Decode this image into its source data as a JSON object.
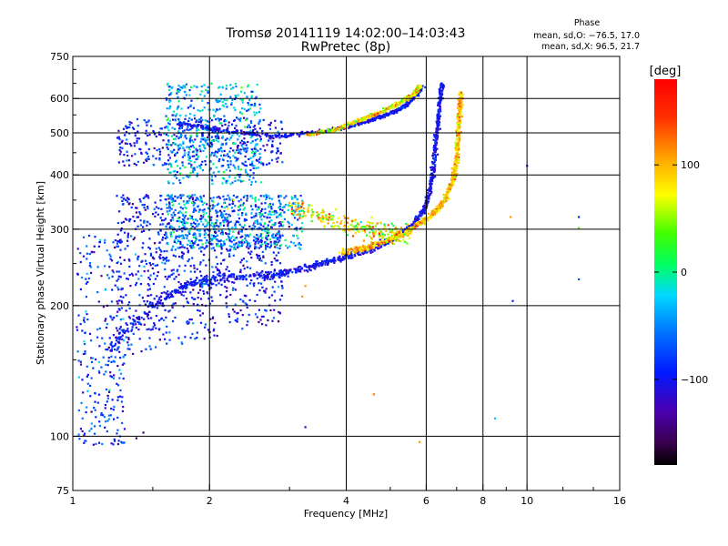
{
  "chart_data": {
    "type": "scatter",
    "title": "Tromsø 20141119 14:02:00–14:03:43",
    "subtitle": "RwPretec (8p)",
    "xlabel": "Frequency [MHz]",
    "ylabel": "Stationary phase Virtual Height [km]",
    "x_scale": "log",
    "y_scale": "log",
    "xlim": [
      1,
      16
    ],
    "ylim": [
      75,
      750
    ],
    "x_ticks": [
      1,
      2,
      4,
      6,
      8,
      10,
      16
    ],
    "x_tick_labels": [
      "1",
      "2",
      "4",
      "6",
      "8",
      "10",
      "16"
    ],
    "y_ticks": [
      75,
      100,
      200,
      300,
      400,
      500,
      600,
      750
    ],
    "y_tick_labels": [
      "75",
      "100",
      "200",
      "300",
      "400",
      "500",
      "600",
      "750"
    ],
    "x_grid": [
      2,
      4,
      6,
      8,
      10
    ],
    "y_grid": [
      100,
      200,
      300,
      400,
      500,
      600
    ],
    "grid": true,
    "stats": {
      "title": "Phase",
      "line_o": "mean, sd,O: −76.5, 17.0",
      "line_x": "mean, sd,X:  96.5, 21.7"
    },
    "colorbar": {
      "label": "[deg]",
      "range": [
        -180,
        180
      ],
      "ticks": [
        100,
        0,
        -100
      ],
      "tick_labels": [
        "100",
        "0",
        "−100"
      ]
    },
    "traces": [
      {
        "name": "o_low_band",
        "phase": -100,
        "phase_sd": 15,
        "curve": [
          [
            1.2,
            160
          ],
          [
            1.5,
            200
          ],
          [
            1.8,
            225
          ],
          [
            2.2,
            232
          ],
          [
            2.8,
            236
          ],
          [
            3.3,
            245
          ],
          [
            3.8,
            256
          ],
          [
            4.4,
            267
          ],
          [
            5.0,
            282
          ],
          [
            5.6,
            304
          ],
          [
            6.0,
            340
          ],
          [
            6.2,
            400
          ],
          [
            6.3,
            480
          ],
          [
            6.4,
            560
          ],
          [
            6.5,
            650
          ]
        ]
      },
      {
        "name": "o_high_band",
        "phase": -100,
        "phase_sd": 15,
        "curve": [
          [
            1.7,
            525
          ],
          [
            2.2,
            505
          ],
          [
            2.8,
            490
          ],
          [
            3.5,
            503
          ],
          [
            4.2,
            522
          ],
          [
            4.8,
            545
          ],
          [
            5.3,
            570
          ],
          [
            5.6,
            600
          ],
          [
            5.9,
            640
          ]
        ]
      },
      {
        "name": "x_low_band",
        "phase": 96,
        "phase_sd": 22,
        "curve": [
          [
            3.9,
            265
          ],
          [
            4.4,
            272
          ],
          [
            5.0,
            284
          ],
          [
            5.6,
            300
          ],
          [
            6.2,
            325
          ],
          [
            6.6,
            350
          ],
          [
            6.85,
            385
          ],
          [
            7.0,
            430
          ],
          [
            7.05,
            490
          ],
          [
            7.1,
            550
          ],
          [
            7.15,
            620
          ]
        ]
      },
      {
        "name": "x_high_band",
        "phase": 80,
        "phase_sd": 30,
        "curve": [
          [
            3.3,
            495
          ],
          [
            3.8,
            510
          ],
          [
            4.3,
            535
          ],
          [
            4.8,
            560
          ],
          [
            5.3,
            590
          ],
          [
            5.7,
            620
          ],
          [
            5.8,
            640
          ]
        ]
      },
      {
        "name": "x_mid_cloud",
        "phase": 75,
        "phase_sd": 40,
        "curve": [
          [
            3.0,
            340
          ],
          [
            3.5,
            320
          ],
          [
            4.0,
            305
          ],
          [
            4.5,
            300
          ],
          [
            5.0,
            292
          ],
          [
            5.5,
            290
          ]
        ]
      }
    ],
    "clusters": [
      {
        "name": "spread_f_main",
        "phase": -95,
        "phase_sd": 25,
        "freq": [
          1.25,
          2.9
        ],
        "height": [
          150,
          560
        ]
      },
      {
        "name": "upper_scatter",
        "phase": -40,
        "phase_sd": 30,
        "freq": [
          1.6,
          2.6
        ],
        "height": [
          380,
          650
        ]
      },
      {
        "name": "mid_scatter",
        "phase": -40,
        "phase_sd": 35,
        "freq": [
          1.6,
          3.2
        ],
        "height": [
          270,
          360
        ]
      },
      {
        "name": "low_left",
        "phase": -80,
        "phase_sd": 30,
        "freq": [
          1.02,
          1.3
        ],
        "height": [
          95,
          290
        ]
      }
    ],
    "isolated_points": [
      [
        1.05,
        110,
        -60
      ],
      [
        1.1,
        107,
        -40
      ],
      [
        1.16,
        96,
        -50
      ],
      [
        1.3,
        104,
        -110
      ],
      [
        1.38,
        99,
        -150
      ],
      [
        1.43,
        102,
        -160
      ],
      [
        3.25,
        105,
        -120
      ],
      [
        4.6,
        125,
        120
      ],
      [
        5.8,
        97,
        110
      ],
      [
        8.5,
        110,
        -30
      ],
      [
        10.0,
        420,
        -110
      ],
      [
        13.0,
        230,
        -70
      ],
      [
        13.0,
        320,
        -90
      ],
      [
        13.0,
        302,
        40
      ],
      [
        9.2,
        320,
        110
      ],
      [
        9.3,
        205,
        -90
      ],
      [
        3.2,
        210,
        115
      ],
      [
        3.25,
        222,
        110
      ]
    ]
  }
}
